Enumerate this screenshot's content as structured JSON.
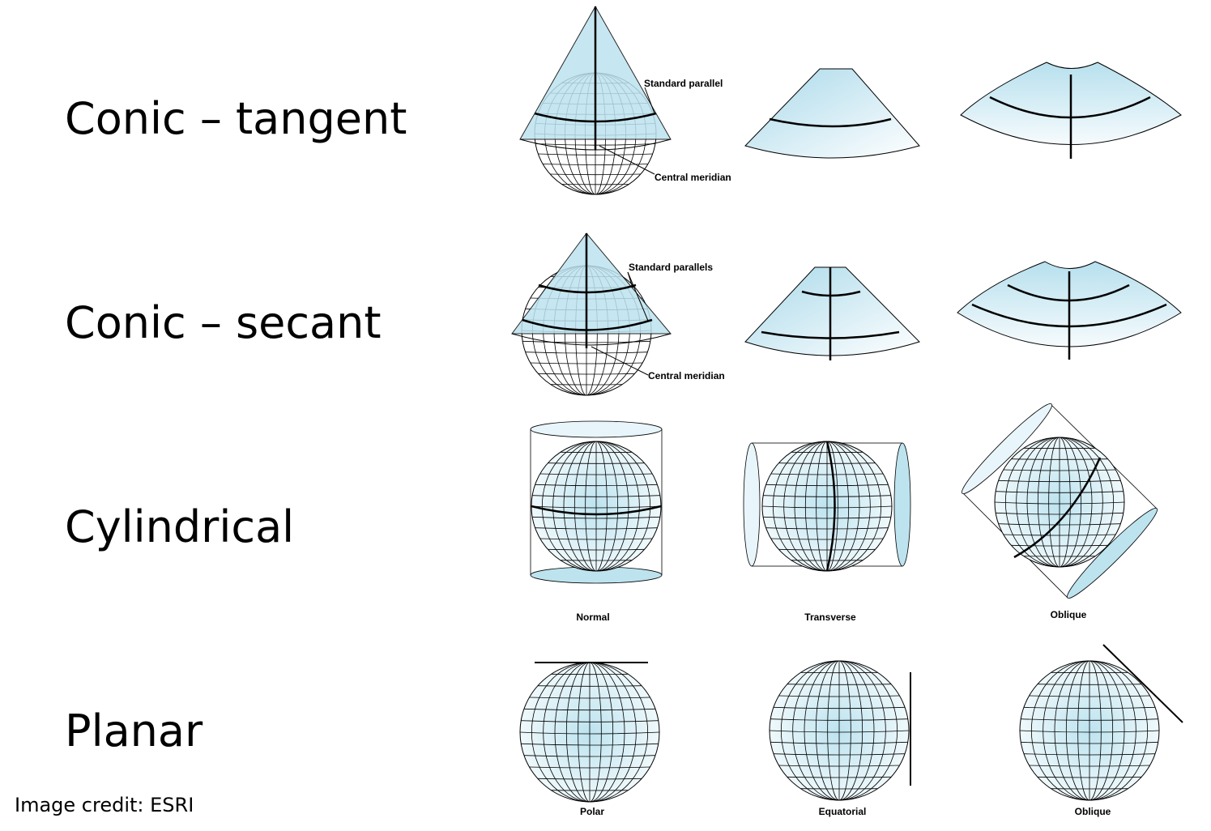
{
  "rows": [
    {
      "label": "Conic – tangent"
    },
    {
      "label": "Conic – secant"
    },
    {
      "label": "Cylindrical"
    },
    {
      "label": "Planar"
    }
  ],
  "annotations": {
    "standard_parallel": "Standard parallel",
    "central_meridian_1": "Central meridian",
    "standard_parallels": "Standard parallels",
    "central_meridian_2": "Central meridian"
  },
  "captions": {
    "cylindrical": [
      "Normal",
      "Transverse",
      "Oblique"
    ],
    "planar": [
      "Polar",
      "Equatorial",
      "Oblique"
    ]
  },
  "credit": "Image credit: ESRI",
  "colors": {
    "fill": "#bde3ef",
    "fill_light": "#e8f5fa",
    "stroke": "#000000"
  }
}
